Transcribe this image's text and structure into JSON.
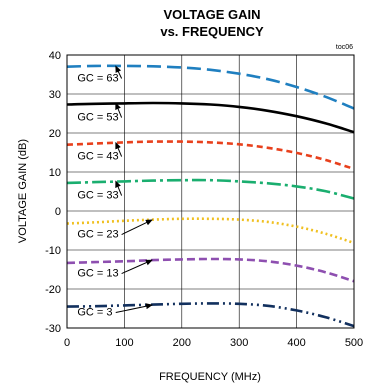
{
  "chart_data": {
    "type": "line",
    "title": "VOLTAGE GAIN",
    "subtitle": "vs. FREQUENCY",
    "corner_label": "toc06",
    "xlabel": "FREQUENCY (MHz)",
    "ylabel": "VOLTAGE GAIN (dB)",
    "xlim": [
      0,
      500
    ],
    "ylim": [
      -30,
      40
    ],
    "x_ticks": [
      "0",
      "100",
      "200",
      "300",
      "400",
      "500"
    ],
    "y_ticks": [
      "40",
      "30",
      "20",
      "10",
      "0",
      "-10",
      "-20",
      "-30"
    ],
    "grid": true,
    "x": [
      0,
      50,
      100,
      150,
      200,
      250,
      300,
      350,
      400,
      450,
      500
    ],
    "series": [
      {
        "name": "GC = 63",
        "color": "#1f7fc0",
        "dash": "14,6",
        "values": [
          37,
          37.2,
          37.2,
          37.1,
          36.8,
          36.2,
          35.2,
          33.8,
          31.8,
          29.3,
          26.3
        ]
      },
      {
        "name": "GC = 53",
        "color": "#000000",
        "dash": "",
        "values": [
          27.3,
          27.5,
          27.6,
          27.7,
          27.6,
          27.3,
          26.7,
          25.7,
          24.3,
          22.5,
          20.2
        ]
      },
      {
        "name": "GC = 43",
        "color": "#e8401c",
        "dash": "6,4",
        "values": [
          17,
          17.3,
          17.6,
          17.8,
          17.8,
          17.6,
          17.1,
          16.2,
          14.9,
          13.1,
          10.8
        ]
      },
      {
        "name": "GC = 33",
        "color": "#1aae6f",
        "dash": "14,4,3,4",
        "values": [
          7.2,
          7.4,
          7.6,
          7.8,
          7.9,
          7.9,
          7.6,
          7.1,
          6.3,
          5.1,
          3.2
        ]
      },
      {
        "name": "GC = 23",
        "color": "#f0c020",
        "dash": "2,3",
        "values": [
          -3.2,
          -2.9,
          -2.5,
          -2.2,
          -2,
          -2,
          -2.2,
          -2.8,
          -4,
          -5.8,
          -8.2
        ]
      },
      {
        "name": "GC = 13",
        "color": "#8e4fb0",
        "dash": "8,4",
        "values": [
          -13.3,
          -13.1,
          -12.9,
          -12.6,
          -12.4,
          -12.3,
          -12.4,
          -12.9,
          -14,
          -15.7,
          -18
        ]
      },
      {
        "name": "GC = 3",
        "color": "#12305e",
        "dash": "12,4,2,4,2,4",
        "values": [
          -24.5,
          -24.4,
          -24.2,
          -24,
          -23.8,
          -23.7,
          -23.8,
          -24.3,
          -25.5,
          -27.2,
          -29.5
        ]
      }
    ],
    "annotations": [
      {
        "text": "GC = 63",
        "label_x": 18,
        "label_y": 33.2,
        "arrow_to_x": 85,
        "arrow_to_y": 37.1
      },
      {
        "text": "GC = 53",
        "label_x": 18,
        "label_y": 23.2,
        "arrow_to_x": 85,
        "arrow_to_y": 27.6
      },
      {
        "text": "GC = 43",
        "label_x": 18,
        "label_y": 13.2,
        "arrow_to_x": 85,
        "arrow_to_y": 17.5
      },
      {
        "text": "GC = 33",
        "label_x": 18,
        "label_y": 3.2,
        "arrow_to_x": 85,
        "arrow_to_y": 7.6
      },
      {
        "text": "GC = 23",
        "label_x": 18,
        "label_y": -6.8,
        "arrow_to_x": 148,
        "arrow_to_y": -2.3
      },
      {
        "text": "GC = 13",
        "label_x": 18,
        "label_y": -16.8,
        "arrow_to_x": 148,
        "arrow_to_y": -12.6
      },
      {
        "text": "GC = 3",
        "label_x": 18,
        "label_y": -26.8,
        "arrow_to_x": 148,
        "arrow_to_y": -24.1
      }
    ]
  }
}
